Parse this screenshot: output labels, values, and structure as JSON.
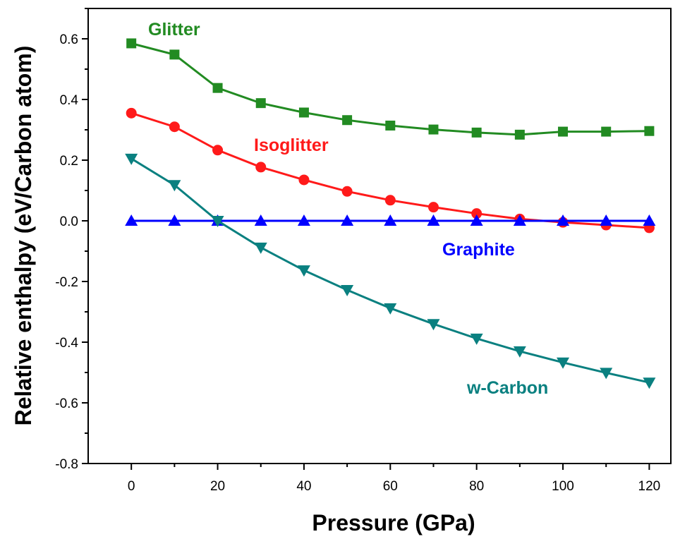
{
  "chart_data": {
    "type": "line",
    "xlabel": "Pressure (GPa)",
    "ylabel": "Relative enthalpy (eV/Carbon atom)",
    "xlim": [
      -10,
      125
    ],
    "ylim": [
      -0.8,
      0.7
    ],
    "xticks": [
      0,
      20,
      40,
      60,
      80,
      100,
      120
    ],
    "xtick_labels": [
      "0",
      "20",
      "40",
      "60",
      "80",
      "100",
      "120"
    ],
    "yticks": [
      -0.8,
      -0.6,
      -0.4,
      -0.2,
      0.0,
      0.2,
      0.4,
      0.6
    ],
    "ytick_labels": [
      "-0.8",
      "-0.6",
      "-0.4",
      "-0.2",
      "0.0",
      "0.2",
      "0.4",
      "0.6"
    ],
    "grid": false,
    "x": [
      0,
      10,
      20,
      30,
      40,
      50,
      60,
      70,
      80,
      90,
      100,
      110,
      120
    ],
    "series": [
      {
        "name": "Glitter",
        "color": "#228b22",
        "marker": "square",
        "values": [
          0.585,
          0.548,
          0.438,
          0.388,
          0.357,
          0.332,
          0.314,
          0.301,
          0.291,
          0.284,
          0.294,
          0.294,
          0.296
        ]
      },
      {
        "name": "Isoglitter",
        "color": "#ff1a1a",
        "marker": "circle",
        "values": [
          0.355,
          0.31,
          0.233,
          0.177,
          0.135,
          0.097,
          0.068,
          0.045,
          0.024,
          0.006,
          -0.005,
          -0.014,
          -0.023
        ]
      },
      {
        "name": "Graphite",
        "color": "#0000ff",
        "marker": "triangle-up",
        "values": [
          0,
          0,
          0,
          0,
          0,
          0,
          0,
          0,
          0,
          0,
          0,
          0,
          0
        ]
      },
      {
        "name": "w-Carbon",
        "color": "#0a8080",
        "marker": "triangle-down",
        "values": [
          0.205,
          0.118,
          0.0,
          -0.088,
          -0.163,
          -0.228,
          -0.288,
          -0.34,
          -0.388,
          -0.43,
          -0.467,
          -0.501,
          -0.533
        ]
      }
    ]
  }
}
